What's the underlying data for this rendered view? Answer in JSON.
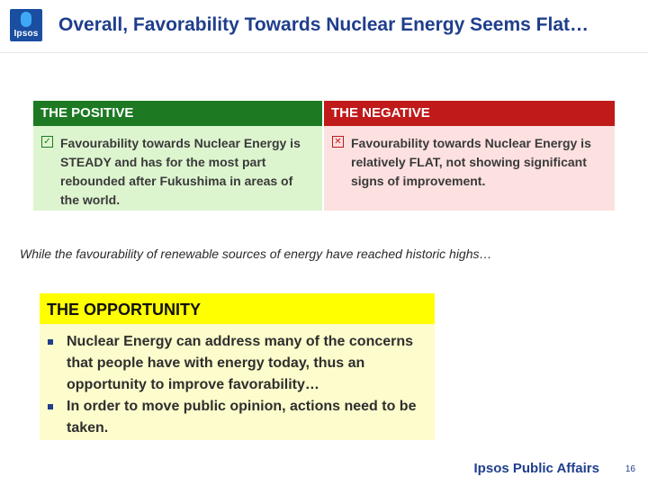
{
  "logo": {
    "text": "Ipsos",
    "icon": "ipsos-logo-icon",
    "color": "#1a4ea1"
  },
  "title": "Overall, Favorability Towards Nuclear Energy Seems Flat…",
  "positive": {
    "heading": "THE POSITIVE",
    "icon": "checkbox-checked-icon",
    "glyph": "☑",
    "text": "Favourability towards Nuclear Energy is STEADY and has for the most part rebounded after Fukushima in areas of the world.",
    "color": "#1d7a23"
  },
  "negative": {
    "heading": "THE NEGATIVE",
    "icon": "checkbox-x-icon",
    "glyph": "☒",
    "text": "Favourability towards Nuclear Energy is relatively FLAT, not showing significant signs of improvement.",
    "color": "#c01a1a"
  },
  "subline": "While the favourability of renewable sources of energy have reached historic highs…",
  "opportunity": {
    "heading": "THE OPPORTUNITY",
    "items": [
      "Nuclear Energy can address many of the concerns that people have with energy today, thus an opportunity to improve favorability…",
      "In order to move public opinion, actions need to be taken."
    ]
  },
  "footer": {
    "brand": "Ipsos Public Affairs",
    "page": "16"
  }
}
